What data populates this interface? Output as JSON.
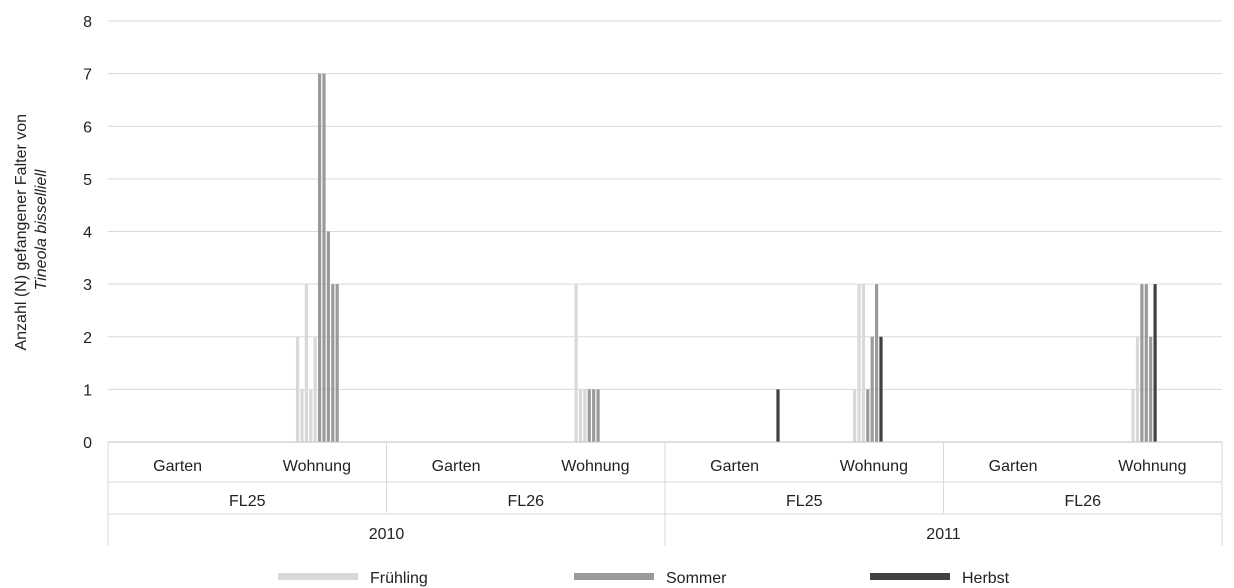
{
  "chart_data": {
    "type": "bar",
    "ylabel_line1": "Anzahl (N) gefangener Falter von",
    "ylabel_line2": "Tineola bisselliell",
    "ylim": [
      0,
      8
    ],
    "yticks": [
      0,
      1,
      2,
      3,
      4,
      5,
      6,
      7,
      8
    ],
    "grid": true,
    "legend_position": "bottom",
    "series": [
      {
        "name": "Frühling",
        "color": "#d9d9d9"
      },
      {
        "name": "Sommer",
        "color": "#9a9a9a"
      },
      {
        "name": "Herbst",
        "color": "#404040"
      }
    ],
    "groups": [
      {
        "year": "2010",
        "trap": "FL25",
        "locations": [
          {
            "name": "Garten",
            "bars": []
          },
          {
            "name": "Wohnung",
            "bars": [
              {
                "series": "Frühling",
                "value": 2
              },
              {
                "series": "Frühling",
                "value": 1
              },
              {
                "series": "Frühling",
                "value": 3
              },
              {
                "series": "Frühling",
                "value": 1
              },
              {
                "series": "Frühling",
                "value": 2
              },
              {
                "series": "Sommer",
                "value": 7
              },
              {
                "series": "Sommer",
                "value": 7
              },
              {
                "series": "Sommer",
                "value": 4
              },
              {
                "series": "Sommer",
                "value": 3
              },
              {
                "series": "Sommer",
                "value": 3
              }
            ]
          }
        ]
      },
      {
        "year": "2010",
        "trap": "FL26",
        "locations": [
          {
            "name": "Garten",
            "bars": []
          },
          {
            "name": "Wohnung",
            "bars": [
              {
                "series": "Frühling",
                "value": 3
              },
              {
                "series": "Frühling",
                "value": 1
              },
              {
                "series": "Frühling",
                "value": 1
              },
              {
                "series": "Sommer",
                "value": 1
              },
              {
                "series": "Sommer",
                "value": 1
              },
              {
                "series": "Sommer",
                "value": 1
              }
            ]
          }
        ]
      },
      {
        "year": "2011",
        "trap": "FL25",
        "locations": [
          {
            "name": "Garten",
            "bars": [
              {
                "series": "Herbst",
                "value": 1
              }
            ]
          },
          {
            "name": "Wohnung",
            "bars": [
              {
                "series": "Frühling",
                "value": 1
              },
              {
                "series": "Frühling",
                "value": 3
              },
              {
                "series": "Frühling",
                "value": 3
              },
              {
                "series": "Sommer",
                "value": 1
              },
              {
                "series": "Sommer",
                "value": 2
              },
              {
                "series": "Sommer",
                "value": 3
              },
              {
                "series": "Herbst",
                "value": 2
              }
            ]
          }
        ]
      },
      {
        "year": "2011",
        "trap": "FL26",
        "locations": [
          {
            "name": "Garten",
            "bars": []
          },
          {
            "name": "Wohnung",
            "bars": [
              {
                "series": "Frühling",
                "value": 1
              },
              {
                "series": "Frühling",
                "value": 2
              },
              {
                "series": "Sommer",
                "value": 3
              },
              {
                "series": "Sommer",
                "value": 3
              },
              {
                "series": "Sommer",
                "value": 2
              },
              {
                "series": "Herbst",
                "value": 3
              }
            ]
          }
        ]
      }
    ],
    "years": [
      "2010",
      "2011"
    ]
  }
}
